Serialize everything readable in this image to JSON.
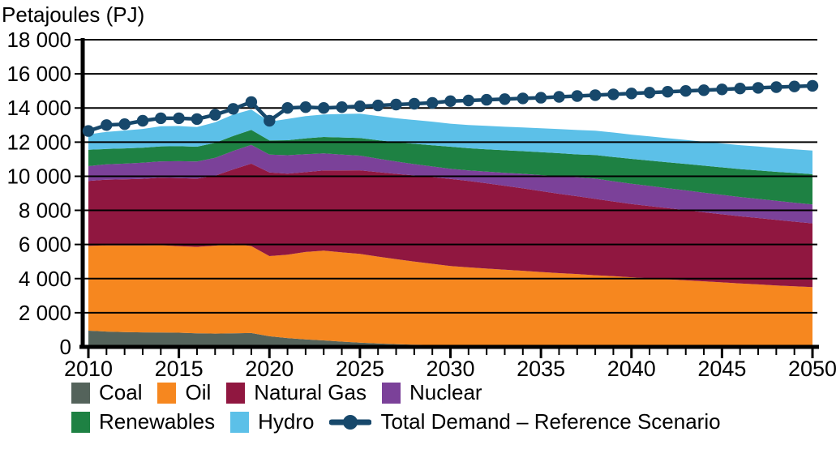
{
  "title": "Petajoules (PJ)",
  "chart_data": {
    "type": "area",
    "stacked": true,
    "title": "Petajoules (PJ)",
    "xlabel": "",
    "ylabel": "Petajoules (PJ)",
    "xlim": [
      2010,
      2050
    ],
    "ylim": [
      0,
      18000
    ],
    "y_tick_step": 2000,
    "grid": "horizontal",
    "legend_position": "bottom",
    "y_tick_labels": [
      "0",
      "2 000",
      "4 000",
      "6 000",
      "8 000",
      "10 000",
      "12 000",
      "14 000",
      "16 000",
      "18 000"
    ],
    "x_tick_labels": [
      "2010",
      "2015",
      "2020",
      "2025",
      "2030",
      "2035",
      "2040",
      "2045",
      "2050"
    ],
    "years": [
      2010,
      2011,
      2012,
      2013,
      2014,
      2015,
      2016,
      2017,
      2018,
      2019,
      2020,
      2021,
      2022,
      2023,
      2024,
      2025,
      2026,
      2027,
      2028,
      2029,
      2030,
      2031,
      2032,
      2033,
      2034,
      2035,
      2036,
      2037,
      2038,
      2039,
      2040,
      2041,
      2042,
      2043,
      2044,
      2045,
      2046,
      2047,
      2048,
      2049,
      2050
    ],
    "series": [
      {
        "name": "Coal",
        "color": "#54635b",
        "values": [
          950,
          900,
          870,
          850,
          840,
          830,
          800,
          780,
          800,
          810,
          620,
          520,
          440,
          380,
          310,
          250,
          200,
          160,
          130,
          110,
          90,
          70,
          50,
          40,
          30,
          20,
          10,
          10,
          0,
          0,
          0,
          0,
          0,
          0,
          0,
          0,
          0,
          0,
          0,
          0,
          0
        ]
      },
      {
        "name": "Oil",
        "color": "#f6871f",
        "values": [
          4970,
          5050,
          5080,
          5100,
          5120,
          5070,
          5060,
          5150,
          5250,
          5100,
          4700,
          4880,
          5120,
          5260,
          5230,
          5200,
          5090,
          4980,
          4870,
          4760,
          4650,
          4590,
          4540,
          4480,
          4430,
          4370,
          4310,
          4260,
          4200,
          4140,
          4080,
          4020,
          3960,
          3900,
          3840,
          3780,
          3720,
          3660,
          3600,
          3550,
          3500
        ]
      },
      {
        "name": "Natural Gas",
        "color": "#901740",
        "values": [
          3800,
          3850,
          3870,
          3900,
          3950,
          3990,
          4000,
          4100,
          4350,
          4830,
          4900,
          4750,
          4680,
          4700,
          4800,
          4900,
          4950,
          5000,
          5050,
          5080,
          5100,
          5060,
          5000,
          4920,
          4830,
          4740,
          4650,
          4560,
          4470,
          4380,
          4290,
          4230,
          4170,
          4110,
          4050,
          3990,
          3930,
          3890,
          3840,
          3790,
          3740
        ]
      },
      {
        "name": "Nuclear",
        "color": "#7b4199",
        "values": [
          870,
          900,
          920,
          940,
          960,
          990,
          1000,
          1050,
          1080,
          1100,
          1050,
          1080,
          1050,
          1000,
          930,
          860,
          790,
          720,
          660,
          620,
          600,
          620,
          680,
          760,
          850,
          940,
          1030,
          1110,
          1190,
          1190,
          1190,
          1180,
          1170,
          1160,
          1150,
          1140,
          1130,
          1120,
          1120,
          1110,
          1110
        ]
      },
      {
        "name": "Renewables",
        "color": "#1e8143",
        "values": [
          960,
          900,
          890,
          880,
          880,
          880,
          870,
          880,
          880,
          880,
          830,
          880,
          930,
          960,
          1000,
          1030,
          1080,
          1130,
          1190,
          1240,
          1290,
          1300,
          1310,
          1320,
          1330,
          1340,
          1350,
          1340,
          1380,
          1420,
          1460,
          1490,
          1520,
          1550,
          1580,
          1610,
          1640,
          1670,
          1700,
          1740,
          1770
        ]
      },
      {
        "name": "Hydro",
        "color": "#5cc0e8",
        "values": [
          900,
          1000,
          1050,
          1100,
          1180,
          1180,
          1150,
          1200,
          1250,
          1190,
          1100,
          1250,
          1300,
          1320,
          1380,
          1430,
          1420,
          1410,
          1400,
          1390,
          1350,
          1360,
          1370,
          1380,
          1390,
          1400,
          1410,
          1430,
          1430,
          1430,
          1420,
          1420,
          1410,
          1410,
          1400,
          1400,
          1400,
          1400,
          1390,
          1390,
          1390
        ]
      }
    ],
    "line_series": {
      "name": "Total Demand – Reference Scenario",
      "color": "#17486b",
      "values": [
        12650,
        13000,
        13050,
        13250,
        13400,
        13400,
        13350,
        13600,
        13950,
        14350,
        13250,
        14000,
        14050,
        14000,
        14050,
        14100,
        14150,
        14200,
        14250,
        14300,
        14400,
        14440,
        14480,
        14520,
        14560,
        14600,
        14650,
        14700,
        14750,
        14800,
        14850,
        14900,
        14950,
        15000,
        15040,
        15090,
        15140,
        15180,
        15220,
        15260,
        15300
      ]
    },
    "legend_rows": [
      [
        "Coal",
        "Oil",
        "Natural Gas",
        "Nuclear"
      ],
      [
        "Renewables",
        "Hydro",
        "Total Demand – Reference Scenario"
      ]
    ]
  }
}
